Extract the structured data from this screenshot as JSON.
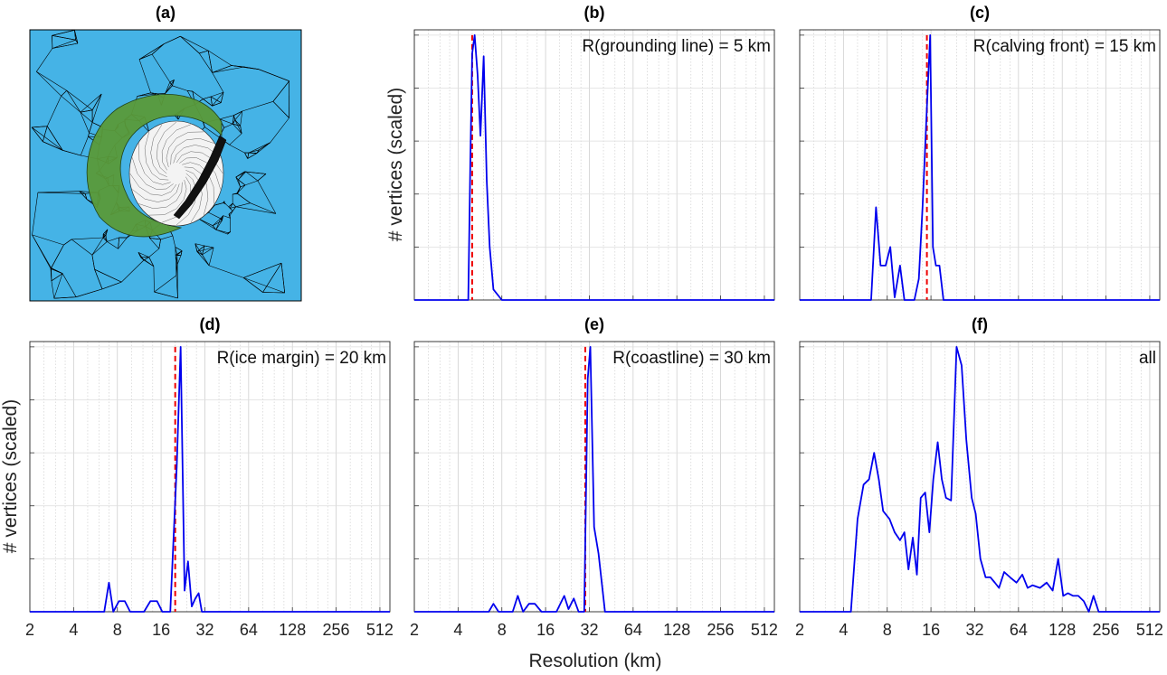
{
  "figure": {
    "shared_xlabel": "Resolution (km)",
    "shared_ylabel": "# vertices (scaled)",
    "colors": {
      "series": "#0000ee",
      "reference": "#ee0000",
      "mesh_bg": "#45b3e6",
      "mesh_ice": "#5a9a3a",
      "mesh_interior": "#ffffff"
    },
    "panel_a": {
      "label": "(a)",
      "description_icon": "triangular-mesh-image"
    }
  },
  "chart_data": [
    {
      "type": "line",
      "panel": "(b)",
      "annotation": "R(grounding line) = 5 km",
      "xscale": "log2",
      "xlim": [
        2,
        600
      ],
      "ylim": [
        0,
        1.02
      ],
      "xticks": [
        2,
        4,
        8,
        16,
        32,
        64,
        128,
        256,
        512
      ],
      "show_xticklabels": false,
      "reference_x": 5,
      "grid": true,
      "x": [
        2,
        4.7,
        4.85,
        5.0,
        5.2,
        5.45,
        5.7,
        6.0,
        6.3,
        6.6,
        7.0,
        8.0,
        600
      ],
      "y": [
        0,
        0,
        0.5,
        0.93,
        1.0,
        0.85,
        0.62,
        0.92,
        0.45,
        0.2,
        0.04,
        0,
        0
      ]
    },
    {
      "type": "line",
      "panel": "(c)",
      "annotation": "R(calving front) = 15 km",
      "xscale": "log2",
      "xlim": [
        2,
        600
      ],
      "ylim": [
        0,
        1.02
      ],
      "xticks": [
        2,
        4,
        8,
        16,
        32,
        64,
        128,
        256,
        512
      ],
      "show_xticklabels": false,
      "reference_x": 15,
      "grid": true,
      "x": [
        2,
        6.2,
        6.7,
        7.2,
        7.8,
        8.4,
        9.0,
        9.8,
        10.5,
        11.3,
        12.3,
        13.2,
        14.0,
        15.2,
        15.8,
        16.5,
        17.3,
        18.3,
        19.5,
        20.6,
        600
      ],
      "y": [
        0,
        0,
        0.35,
        0.13,
        0.13,
        0.2,
        0.01,
        0.13,
        0.0,
        0.0,
        0.0,
        0.08,
        0.35,
        0.8,
        1.0,
        0.2,
        0.13,
        0.13,
        0.0,
        0.0,
        0
      ]
    },
    {
      "type": "line",
      "panel": "(d)",
      "annotation": "R(ice margin) = 20 km",
      "xscale": "log2",
      "xlim": [
        2,
        600
      ],
      "ylim": [
        0,
        1.02
      ],
      "xticks": [
        2,
        4,
        8,
        16,
        32,
        64,
        128,
        256,
        512
      ],
      "xticklabels": [
        "2",
        "4",
        "8",
        "16",
        "32",
        "64",
        "128",
        "256",
        "512"
      ],
      "reference_x": 20,
      "grid": true,
      "x": [
        2,
        6.5,
        7.0,
        7.5,
        8.2,
        9.0,
        9.8,
        11,
        12.2,
        13.5,
        15,
        16.3,
        18.5,
        20.5,
        21.8,
        23.2,
        24.5,
        26,
        27.5,
        29,
        30.5,
        33,
        600
      ],
      "y": [
        0,
        0,
        0.11,
        0.0,
        0.04,
        0.04,
        0.0,
        0.0,
        0.0,
        0.04,
        0.04,
        0.0,
        0.0,
        0.55,
        1.0,
        0.08,
        0.19,
        0.02,
        0.05,
        0.07,
        0.0,
        0.0,
        0
      ]
    },
    {
      "type": "line",
      "panel": "(e)",
      "annotation": "R(coastline) = 30 km",
      "xscale": "log2",
      "xlim": [
        2,
        600
      ],
      "ylim": [
        0,
        1.02
      ],
      "xticks": [
        2,
        4,
        8,
        16,
        32,
        64,
        128,
        256,
        512
      ],
      "xticklabels": [
        "2",
        "4",
        "8",
        "16",
        "32",
        "64",
        "128",
        "256",
        "512"
      ],
      "reference_x": 30,
      "grid": true,
      "x": [
        2,
        6.5,
        7.0,
        7.6,
        8.5,
        9.5,
        10.3,
        11.2,
        12.3,
        13.5,
        15,
        17,
        19,
        21.5,
        23,
        25,
        27,
        29.5,
        31.2,
        32.5,
        34.5,
        37,
        41,
        600
      ],
      "y": [
        0,
        0,
        0.03,
        0.0,
        0.0,
        0.0,
        0.06,
        0.0,
        0.03,
        0.03,
        0.0,
        0.0,
        0.0,
        0.06,
        0.01,
        0.05,
        0.0,
        0.0,
        0.88,
        1.0,
        0.32,
        0.22,
        0.0,
        0
      ]
    },
    {
      "type": "line",
      "panel": "(f)",
      "annotation": "all",
      "xscale": "log2",
      "xlim": [
        2,
        600
      ],
      "ylim": [
        0,
        1.02
      ],
      "xticks": [
        2,
        4,
        8,
        16,
        32,
        64,
        128,
        256,
        512
      ],
      "xticklabels": [
        "2",
        "4",
        "8",
        "16",
        "32",
        "64",
        "128",
        "256",
        "512"
      ],
      "reference_x": null,
      "grid": true,
      "x": [
        2,
        4.5,
        5.0,
        5.5,
        6.0,
        6.5,
        7.0,
        7.5,
        8.3,
        9.0,
        9.8,
        10.5,
        11.2,
        12.0,
        12.8,
        13.6,
        14.6,
        15.6,
        16.6,
        17.8,
        19.0,
        20.3,
        22,
        24,
        26,
        28,
        30.5,
        32.5,
        35,
        38,
        41,
        44,
        47,
        51,
        56,
        62,
        68,
        74,
        80,
        90,
        100,
        110,
        120,
        130,
        140,
        152,
        165,
        180,
        195,
        210,
        228,
        248,
        265,
        300,
        600
      ],
      "y": [
        0,
        0,
        0.35,
        0.48,
        0.5,
        0.6,
        0.5,
        0.38,
        0.35,
        0.3,
        0.27,
        0.3,
        0.16,
        0.28,
        0.14,
        0.43,
        0.45,
        0.3,
        0.5,
        0.64,
        0.5,
        0.43,
        0.42,
        1.0,
        0.93,
        0.65,
        0.43,
        0.37,
        0.2,
        0.13,
        0.13,
        0.11,
        0.09,
        0.15,
        0.13,
        0.11,
        0.14,
        0.09,
        0.1,
        0.09,
        0.11,
        0.08,
        0.2,
        0.06,
        0.07,
        0.06,
        0.06,
        0.04,
        0.0,
        0.06,
        0.0,
        0.0,
        0.0,
        0.0,
        0
      ]
    }
  ]
}
